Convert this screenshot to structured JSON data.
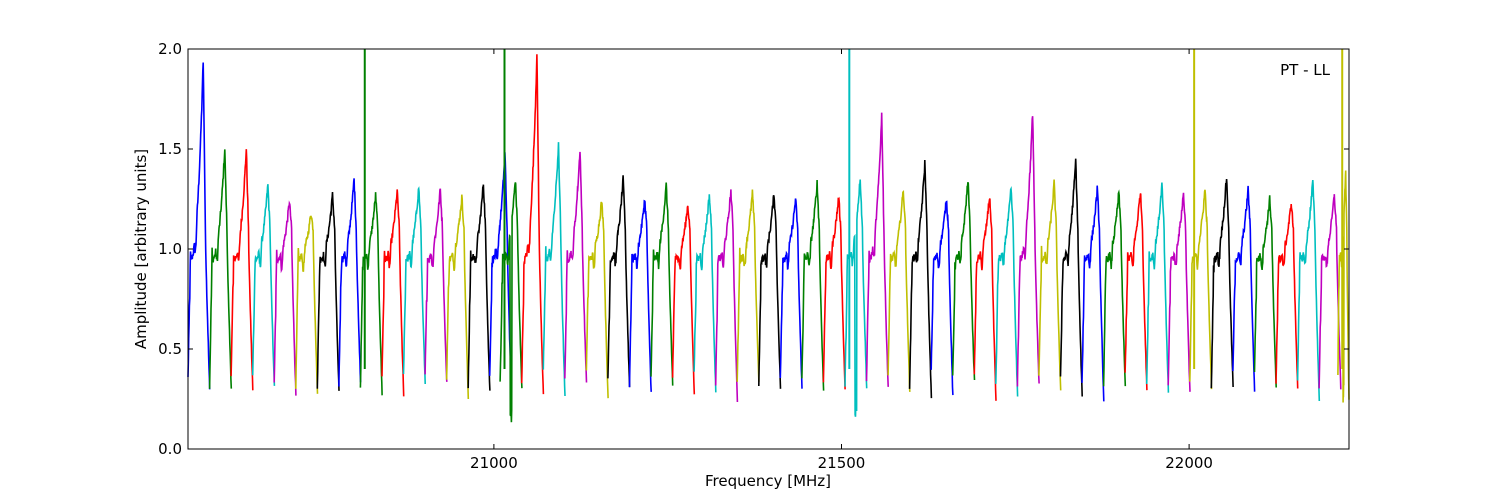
{
  "chart_data": {
    "type": "line",
    "title": "",
    "annotation": "PT - LL",
    "xlabel": "Frequency [MHz]",
    "ylabel": "Amplitude [arbitrary units]",
    "xlim": [
      20560,
      22230
    ],
    "ylim": [
      0.0,
      2.0
    ],
    "x_ticks": [
      21000,
      21500,
      22000
    ],
    "x_tick_labels": [
      "21000",
      "21500",
      "22000"
    ],
    "y_ticks": [
      0.0,
      0.5,
      1.0,
      1.5,
      2.0
    ],
    "y_tick_labels": [
      "0.0",
      "0.5",
      "1.0",
      "1.5",
      "2.0"
    ],
    "grid": false,
    "legend": "none",
    "band_width_mhz": 31.25,
    "color_cycle": [
      "#0000ff",
      "#008000",
      "#ff0000",
      "#00bfbf",
      "#bf00bf",
      "#bfbf00",
      "#000000"
    ],
    "series_note": "Each spectral window is one line segment; colours cycle through color_cycle in order.",
    "bands": [
      {
        "start": 20560,
        "peak": 1.94,
        "shape": "rise"
      },
      {
        "start": 20591,
        "peak": 1.5,
        "spike": null
      },
      {
        "start": 20622,
        "peak": 1.5
      },
      {
        "start": 20653,
        "peak": 1.32
      },
      {
        "start": 20684,
        "peak": 1.24
      },
      {
        "start": 20715,
        "peak": 1.18
      },
      {
        "start": 20746,
        "peak": 1.27
      },
      {
        "start": 20777,
        "peak": 1.35
      },
      {
        "start": 20808,
        "peak": 1.27,
        "spike": 2.0
      },
      {
        "start": 20839,
        "peak": 1.29
      },
      {
        "start": 20870,
        "peak": 1.31
      },
      {
        "start": 20901,
        "peak": 1.3
      },
      {
        "start": 20932,
        "peak": 1.26
      },
      {
        "start": 20963,
        "peak": 1.33
      },
      {
        "start": 20994,
        "peak": 1.48
      },
      {
        "start": 21009,
        "peak": 1.35,
        "spike": 2.0,
        "dip": 0.11
      },
      {
        "start": 21040,
        "peak": 1.97
      },
      {
        "start": 21071,
        "peak": 1.52
      },
      {
        "start": 21102,
        "peak": 1.5
      },
      {
        "start": 21133,
        "peak": 1.24
      },
      {
        "start": 21164,
        "peak": 1.35
      },
      {
        "start": 21195,
        "peak": 1.25
      },
      {
        "start": 21226,
        "peak": 1.32
      },
      {
        "start": 21257,
        "peak": 1.22
      },
      {
        "start": 21288,
        "peak": 1.27
      },
      {
        "start": 21319,
        "peak": 1.29
      },
      {
        "start": 21350,
        "peak": 1.28
      },
      {
        "start": 21381,
        "peak": 1.28
      },
      {
        "start": 21412,
        "peak": 1.25
      },
      {
        "start": 21443,
        "peak": 1.33
      },
      {
        "start": 21474,
        "peak": 1.26
      },
      {
        "start": 21505,
        "peak": 1.36,
        "spike": 2.0,
        "dip": 0.16
      },
      {
        "start": 21536,
        "peak": 1.67
      },
      {
        "start": 21567,
        "peak": 1.3
      },
      {
        "start": 21598,
        "peak": 1.43
      },
      {
        "start": 21629,
        "peak": 1.25
      },
      {
        "start": 21660,
        "peak": 1.35
      },
      {
        "start": 21691,
        "peak": 1.26
      },
      {
        "start": 21722,
        "peak": 1.3
      },
      {
        "start": 21753,
        "peak": 1.68
      },
      {
        "start": 21784,
        "peak": 1.33
      },
      {
        "start": 21815,
        "peak": 1.44
      },
      {
        "start": 21846,
        "peak": 1.3
      },
      {
        "start": 21877,
        "peak": 1.28
      },
      {
        "start": 21908,
        "peak": 1.29
      },
      {
        "start": 21939,
        "peak": 1.32
      },
      {
        "start": 21970,
        "peak": 1.28
      },
      {
        "start": 22001,
        "peak": 1.3,
        "spike": 2.0
      },
      {
        "start": 22032,
        "peak": 1.36
      },
      {
        "start": 22063,
        "peak": 1.3
      },
      {
        "start": 22094,
        "peak": 1.25
      },
      {
        "start": 22125,
        "peak": 1.23
      },
      {
        "start": 22156,
        "peak": 1.34
      },
      {
        "start": 22187,
        "peak": 1.27
      },
      {
        "start": 22214,
        "peak": 1.38,
        "spike": 2.0,
        "dip": 0.23
      }
    ]
  }
}
